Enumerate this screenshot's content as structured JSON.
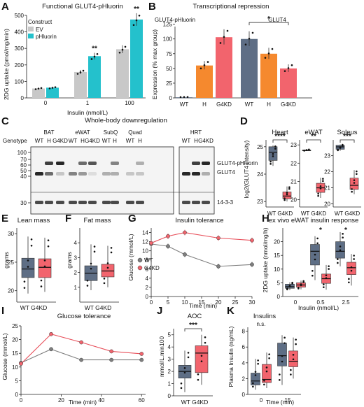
{
  "colors": {
    "wt": "#5e6e85",
    "g4kd": "#f2646d",
    "ev": "#c8c8c8",
    "phluorin": "#24c1cc",
    "h": "#f5892e",
    "grey_line": "#7f7f7f",
    "red_line": "#e8505b"
  },
  "panels": {
    "A": {
      "letter": "A",
      "title": "Functional GLUT4-pHluorin",
      "legend_title": "Construct",
      "legend": [
        "EV",
        "pHluorin"
      ],
      "ylabel": "2DG uptake (pmol/mg/min)",
      "xlabel": "Insulin (nmol/L)"
    },
    "B": {
      "letter": "B",
      "title": "Transcriptional repression",
      "sub1": "GLUT4-pHluorin",
      "sub2": "GLUT4",
      "ylabel": "Expression (% max group)",
      "groups": [
        "WT",
        "H",
        "G4KD",
        "WT",
        "H",
        "G4KD"
      ],
      "sig": "*"
    },
    "C": {
      "letter": "C",
      "title": "Whole-body downregulation",
      "genotype": "Genotype",
      "tissues": [
        "BAT",
        "eWAT",
        "SubQ",
        "Quad",
        "HRT"
      ],
      "lane_labels": [
        "WT",
        "H",
        "G4KD",
        "WT",
        "H",
        "G4KD",
        "WT",
        "H",
        "WT",
        "H",
        "WT",
        "H",
        "G4KD"
      ],
      "mw": [
        "100",
        "70",
        "60",
        "50",
        "40",
        "30"
      ],
      "bands": [
        "GLUT4-pHluorin",
        "GLUT4",
        "14-3-3"
      ]
    },
    "D": {
      "letter": "D",
      "ylabel": "log2(GLUT4 intensity)",
      "tissues": [
        "Heart",
        "eWAT",
        "Soleus"
      ],
      "sig": [
        "****",
        "**",
        "***"
      ],
      "xlabels": [
        "WT",
        "G4KD"
      ]
    },
    "E": {
      "letter": "E",
      "title": "Lean mass",
      "ylabel": "grams",
      "xlabel": "WT G4KD"
    },
    "F": {
      "letter": "F",
      "title": "Fat mass",
      "ylabel": "grams",
      "xlabel": "WT G4KD"
    },
    "G": {
      "letter": "G",
      "title": "Insulin tolerance",
      "ylabel": "Glucose (mmol/L)",
      "xlabel": "Time (min)",
      "legend": [
        "WT",
        "G4KD"
      ]
    },
    "H": {
      "letter": "H",
      "title": "ex vivo eWAT insulin response",
      "ylabel": "2DG uptake (nmol/mg/h)",
      "xlabel": "Insulin (nmol/L)",
      "sig": [
        "*",
        "*"
      ]
    },
    "I": {
      "letter": "I",
      "title": "Glucose tolerance",
      "ylabel": "Glucose (mmol/L)",
      "xlabel": "Time (min)"
    },
    "J": {
      "letter": "J",
      "title": "AOC",
      "ylabel": "mmol/L.min100",
      "xlabel": "WT G4KD",
      "sig": "***"
    },
    "K": {
      "letter": "K",
      "title": "Insulins",
      "ylabel": "Plasma Insulin (ng/mL)",
      "xlabel": "Time (min)",
      "sig": "n.s."
    }
  },
  "chart_data": [
    {
      "panel": "A",
      "type": "bar",
      "categories": [
        "0",
        "1",
        "100"
      ],
      "series": [
        {
          "name": "EV",
          "values": [
            57,
            157,
            295
          ]
        },
        {
          "name": "pHluorin",
          "values": [
            62,
            253,
            475
          ]
        }
      ],
      "ylim": [
        0,
        500
      ],
      "yticks": [
        0,
        100,
        200,
        300,
        400,
        500
      ],
      "sig": [
        "",
        "**",
        "**"
      ]
    },
    {
      "panel": "B",
      "type": "bar",
      "categories": [
        "WT",
        "H",
        "G4KD",
        "WT",
        "H",
        "G4KD"
      ],
      "values": [
        1,
        55,
        103,
        100,
        75,
        50
      ],
      "ylim": [
        0,
        140
      ],
      "yticks": [
        0,
        25,
        50,
        75,
        100,
        125
      ]
    },
    {
      "panel": "D",
      "type": "box",
      "subpanels": [
        {
          "tissue": "Heart",
          "ylim": [
            22.8,
            25.2
          ],
          "yticks": [
            23,
            24,
            25
          ],
          "WT": {
            "q1": 24.5,
            "med": 24.8,
            "q3": 25.0,
            "lo": 24.3,
            "hi": 25.05
          },
          "G4KD": {
            "q1": 23.1,
            "med": 23.2,
            "q3": 23.35,
            "lo": 23.0,
            "hi": 23.55
          }
        },
        {
          "tissue": "eWAT",
          "ylim": [
            19.6,
            23.2
          ],
          "yticks": [
            20,
            21,
            22,
            23
          ],
          "WT": {
            "q1": 22.7,
            "med": 22.7,
            "q3": 22.72,
            "lo": 22.68,
            "hi": 22.75
          },
          "G4KD": {
            "q1": 20.4,
            "med": 20.65,
            "q3": 20.9,
            "lo": 20.1,
            "hi": 21.2
          }
        },
        {
          "tissue": "Soleus",
          "ylim": [
            19.8,
            23.9
          ],
          "yticks": [
            20,
            21,
            22,
            23
          ],
          "WT": {
            "q1": 23.4,
            "med": 23.55,
            "q3": 23.65,
            "lo": 23.3,
            "hi": 23.7
          },
          "G4KD": {
            "q1": 20.9,
            "med": 21.15,
            "q3": 21.6,
            "lo": 20.6,
            "hi": 22.1
          }
        }
      ]
    },
    {
      "panel": "E",
      "type": "box",
      "ylim": [
        18,
        31
      ],
      "yticks": [
        20,
        25,
        30
      ],
      "WT": {
        "q1": 22.3,
        "med": 23.8,
        "q3": 25.7,
        "lo": 19.5,
        "hi": 29.5
      },
      "G4KD": {
        "q1": 22.3,
        "med": 24.1,
        "q3": 25.6,
        "lo": 19.8,
        "hi": 29.3
      }
    },
    {
      "panel": "F",
      "type": "box",
      "ylim": [
        0,
        5
      ],
      "yticks": [
        1,
        2,
        3,
        4
      ],
      "WT": {
        "q1": 1.45,
        "med": 1.95,
        "q3": 2.45,
        "lo": 0.8,
        "hi": 3.9
      },
      "G4KD": {
        "q1": 1.7,
        "med": 2.1,
        "q3": 2.55,
        "lo": 1.0,
        "hi": 3.8
      }
    },
    {
      "panel": "G",
      "type": "line",
      "x": [
        0,
        5,
        10,
        20,
        30
      ],
      "series": [
        {
          "name": "WT",
          "values": [
            11.5,
            11.0,
            9.2,
            6.6,
            7.0
          ]
        },
        {
          "name": "G4KD",
          "values": [
            11.7,
            13.2,
            14.0,
            12.8,
            12.3
          ]
        }
      ],
      "ylim": [
        0,
        15
      ],
      "yticks": [
        0,
        2,
        4,
        6,
        8,
        10,
        12,
        14
      ],
      "xticks": [
        0,
        5,
        10,
        15,
        20,
        25,
        30
      ]
    },
    {
      "panel": "H",
      "type": "box",
      "categories": [
        "0",
        "0.5",
        "2.5"
      ],
      "ylim": [
        0,
        25
      ],
      "yticks": [
        0,
        5,
        10,
        15,
        20
      ],
      "WT": [
        {
          "q1": 3,
          "med": 3.6,
          "q3": 4.5,
          "lo": 2.3,
          "hi": 5.2
        },
        {
          "q1": 11.5,
          "med": 16.5,
          "q3": 19,
          "lo": 6,
          "hi": 22
        },
        {
          "q1": 14,
          "med": 16.5,
          "q3": 20,
          "lo": 11,
          "hi": 23.5
        }
      ],
      "G4KD": [
        {
          "q1": 3.4,
          "med": 4.2,
          "q3": 5,
          "lo": 2.6,
          "hi": 5.8
        },
        {
          "q1": 4.8,
          "med": 6.5,
          "q3": 8.2,
          "lo": 2.5,
          "hi": 11.5
        },
        {
          "q1": 8,
          "med": 10.5,
          "q3": 12.5,
          "lo": 4,
          "hi": 15.5
        }
      ]
    },
    {
      "panel": "I",
      "type": "line",
      "x": [
        0,
        15,
        30,
        45,
        60
      ],
      "series": [
        {
          "name": "WT",
          "values": [
            11.5,
            16.5,
            12.6,
            12.6,
            12.6
          ]
        },
        {
          "name": "G4KD",
          "values": [
            11.2,
            22.0,
            19.0,
            15.7,
            14.8
          ]
        }
      ],
      "ylim": [
        0,
        25
      ],
      "yticks": [
        0,
        5,
        10,
        15,
        20,
        25
      ],
      "xticks": [
        0,
        20,
        40,
        60
      ]
    },
    {
      "panel": "J",
      "type": "box",
      "ylim": [
        0,
        5.5
      ],
      "yticks": [
        0,
        1,
        2,
        3,
        4,
        5
      ],
      "WT": {
        "q1": 1.45,
        "med": 2.0,
        "q3": 2.5,
        "lo": 0.3,
        "hi": 3.7
      },
      "G4KD": {
        "q1": 1.9,
        "med": 3.5,
        "q3": 4.1,
        "lo": 0.9,
        "hi": 5.0
      }
    },
    {
      "panel": "K",
      "type": "box",
      "categories": [
        "0",
        "15"
      ],
      "ylim": [
        0,
        8.5
      ],
      "yticks": [
        0,
        2,
        4,
        6,
        8
      ],
      "WT": [
        {
          "q1": 1.2,
          "med": 1.7,
          "q3": 2.7,
          "lo": 0.6,
          "hi": 4.5
        },
        {
          "q1": 3.6,
          "med": 4.9,
          "q3": 6.5,
          "lo": 1.2,
          "hi": 7.5
        }
      ],
      "G4KD": [
        {
          "q1": 1.5,
          "med": 1.9,
          "q3": 3.8,
          "lo": 0.8,
          "hi": 5.3
        },
        {
          "q1": 3.5,
          "med": 4.2,
          "q3": 5.5,
          "lo": 2.0,
          "hi": 7.2
        }
      ]
    }
  ]
}
